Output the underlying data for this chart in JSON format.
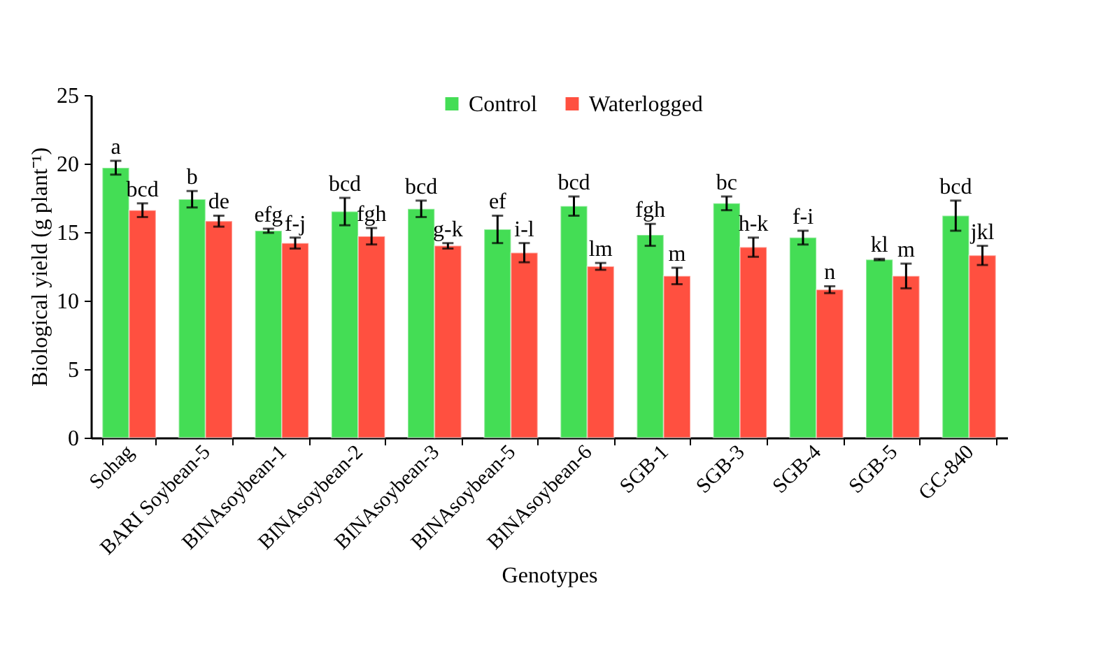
{
  "chart_data": {
    "type": "bar",
    "xlabel": "Genotypes",
    "ylabel": "Biological yield (g plant⁻¹)",
    "categories": [
      "Sohag",
      "BARI Soybean-5",
      "BINAsoybean-1",
      "BINAsoybean-2",
      "BINAsoybean-3",
      "BINAsoybean-5",
      "BINAsoybean-6",
      "SGB-1",
      "SGB-3",
      "SGB-4",
      "SGB-5",
      "GC-840"
    ],
    "series": [
      {
        "name": "Control",
        "color": "#44dd55",
        "values": [
          19.7,
          17.4,
          15.1,
          16.5,
          16.7,
          15.2,
          16.9,
          14.8,
          17.1,
          14.6,
          13.0,
          16.2
        ],
        "errors": [
          0.5,
          0.6,
          0.15,
          1.0,
          0.6,
          1.0,
          0.7,
          0.8,
          0.5,
          0.5,
          0.05,
          1.1
        ],
        "value_labels": [
          "a",
          "b",
          "efg",
          "bcd",
          "bcd",
          "ef",
          "bcd",
          "fgh",
          "bc",
          "f-i",
          "kl",
          "bcd"
        ]
      },
      {
        "name": "Waterlogged",
        "color": "#ff5040",
        "values": [
          16.6,
          15.8,
          14.2,
          14.7,
          14.0,
          13.5,
          12.5,
          11.8,
          13.9,
          10.8,
          11.8,
          13.3
        ],
        "errors": [
          0.5,
          0.4,
          0.4,
          0.6,
          0.2,
          0.7,
          0.25,
          0.6,
          0.7,
          0.25,
          0.9,
          0.7
        ],
        "value_labels": [
          "bcd",
          "de",
          "f-j",
          "fgh",
          "g-k",
          "i-l",
          "lm",
          "m",
          "h-k",
          "n",
          "m",
          "jkl"
        ]
      }
    ],
    "ylim": [
      0,
      25
    ],
    "yticks": [
      0,
      5,
      10,
      15,
      20,
      25
    ],
    "grid": false,
    "legend": "top"
  }
}
